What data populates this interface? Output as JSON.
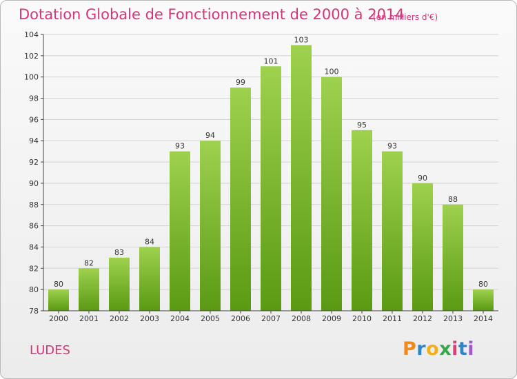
{
  "header": {
    "title": "Dotation Globale de Fonctionnement de 2000 à 2014",
    "subtitle": "(en milliers d'€)"
  },
  "footer": {
    "commune": "LUDES",
    "logo_text": "Proxiti",
    "logo_letters": [
      "P",
      "r",
      "o",
      "x",
      "i",
      "t",
      "i"
    ],
    "logo_colors": [
      "#f08a1c",
      "#2e86c8",
      "#f2b01e",
      "#3aa64a",
      "#e03a7a",
      "#2e86c8",
      "#a05bc8"
    ]
  },
  "colors": {
    "title": "#d6337a",
    "bar_top": "#9ed14e",
    "bar_bottom": "#5a9a12",
    "grid": "#d2d2d2",
    "axis": "#444444"
  },
  "chart_data": {
    "type": "bar",
    "title": "Dotation Globale de Fonctionnement de 2000 à 2014",
    "subtitle": "(en milliers d'€)",
    "xlabel": "",
    "ylabel": "",
    "categories": [
      "2000",
      "2001",
      "2002",
      "2003",
      "2004",
      "2005",
      "2006",
      "2007",
      "2008",
      "2009",
      "2010",
      "2011",
      "2012",
      "2013",
      "2014"
    ],
    "values": [
      80,
      82,
      83,
      84,
      93,
      94,
      99,
      101,
      103,
      100,
      95,
      93,
      90,
      88,
      80
    ],
    "ylim": [
      78,
      104
    ],
    "yticks": [
      78,
      80,
      82,
      84,
      86,
      88,
      90,
      92,
      94,
      96,
      98,
      100,
      102,
      104
    ],
    "grid": true,
    "data_labels": true
  }
}
